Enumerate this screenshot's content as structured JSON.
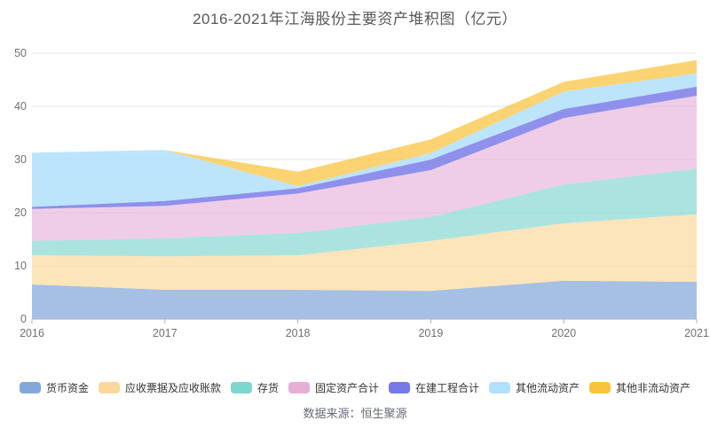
{
  "title": "2016-2021年江海股份主要资产堆积图（亿元）",
  "source": "数据来源：恒生聚源",
  "palette": {
    "grid_line": "#dfe4f2",
    "axis_line": "#a9b2c8",
    "axis_label": "#6e7079",
    "title_text": "#595959",
    "legend_text": "#333333",
    "source_text": "#666a73"
  },
  "axis": {
    "y_ticks": [
      "0",
      "10",
      "20",
      "30",
      "40",
      "50"
    ],
    "x_ticks": [
      "2016",
      "2017",
      "2018",
      "2019",
      "2020",
      "2021"
    ]
  },
  "chart_data": {
    "type": "area",
    "stacked": true,
    "title": "2016-2021年江海股份主要资产堆积图（亿元）",
    "xlabel": "",
    "ylabel": "",
    "x": [
      2016,
      2017,
      2018,
      2019,
      2020,
      2021
    ],
    "ylim": [
      0,
      50
    ],
    "ytick_interval": 10,
    "grid": true,
    "legend_position": "bottom",
    "series": [
      {
        "id": "monetary-funds",
        "name": "货币资金",
        "color": "#84a7d9",
        "fill": "rgba(132,167,217,0.72)",
        "values": [
          6.5,
          5.5,
          5.5,
          5.3,
          7.2,
          7.0
        ]
      },
      {
        "id": "notes-and-accounts-receivable",
        "name": "应收票据及应收账款",
        "color": "#fbd79b",
        "fill": "rgba(251,215,155,0.68)",
        "values": [
          5.5,
          6.3,
          6.5,
          9.4,
          10.8,
          12.7
        ]
      },
      {
        "id": "inventory",
        "name": "存货",
        "color": "#7fd6ce",
        "fill": "rgba(127,214,206,0.66)",
        "values": [
          2.7,
          3.4,
          4.2,
          4.5,
          7.3,
          8.6
        ]
      },
      {
        "id": "fixed-assets-total",
        "name": "固定资产合计",
        "color": "#e7aed9",
        "fill": "rgba(231,174,217,0.62)",
        "values": [
          6.0,
          6.1,
          7.4,
          8.8,
          12.5,
          13.7
        ]
      },
      {
        "id": "construction-in-progress-total",
        "name": "在建工程合计",
        "color": "#7678e8",
        "fill": "rgba(118,120,232,0.82)",
        "values": [
          0.4,
          0.9,
          1.0,
          2.0,
          1.7,
          1.7
        ]
      },
      {
        "id": "other-current-assets",
        "name": "其他流动资产",
        "color": "#b0e0fb",
        "fill": "rgba(176,224,251,0.85)",
        "values": [
          10.2,
          9.6,
          0.4,
          1.2,
          3.3,
          2.5
        ]
      },
      {
        "id": "other-non-current-assets",
        "name": "其他非流动资产",
        "color": "#fbc23c",
        "fill": "rgba(251,194,60,0.72)",
        "values": [
          0.0,
          0.0,
          2.7,
          2.6,
          1.8,
          2.5
        ]
      }
    ]
  }
}
